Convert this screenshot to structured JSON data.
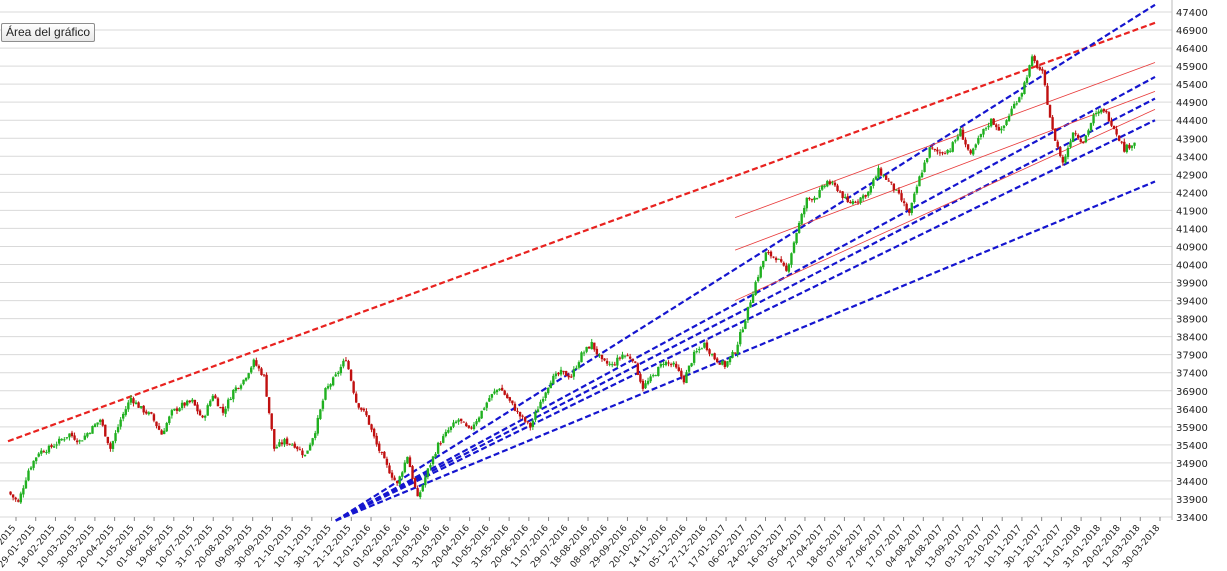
{
  "tooltip": {
    "label": "Área del gráfico"
  },
  "chart_data": {
    "type": "candlestick",
    "title": "",
    "xlabel": "",
    "ylabel": "",
    "ylim": [
      33400,
      47400
    ],
    "yticks": [
      33400,
      33900,
      34400,
      34900,
      35400,
      35900,
      36400,
      36900,
      37400,
      37900,
      38400,
      38900,
      39400,
      39900,
      40400,
      40900,
      41400,
      41900,
      42400,
      42900,
      43400,
      43900,
      44400,
      44900,
      45400,
      45900,
      46400,
      46900,
      47400
    ],
    "xticks": [
      "29-12-2015",
      "29-01-2015",
      "18-02-2015",
      "10-03-2015",
      "30-03-2015",
      "20-04-2015",
      "11-05-2015",
      "01-06-2015",
      "19-06-2015",
      "10-07-2015",
      "31-07-2015",
      "20-08-2015",
      "09-09-2015",
      "30-09-2015",
      "21-10-2015",
      "10-11-2015",
      "30-11-2015",
      "21-12-2015",
      "12-01-2016",
      "01-02-2016",
      "19-02-2016",
      "10-03-2016",
      "31-03-2016",
      "20-04-2016",
      "10-05-2016",
      "31-05-2016",
      "20-06-2016",
      "11-07-2016",
      "29-07-2016",
      "18-08-2016",
      "08-09-2016",
      "29-09-2016",
      "20-10-2016",
      "14-11-2016",
      "05-12-2016",
      "27-12-2016",
      "17-01-2017",
      "06-02-2017",
      "24-02-2017",
      "16-03-2017",
      "05-04-2017",
      "27-04-2017",
      "18-05-2017",
      "07-06-2017",
      "27-06-2017",
      "17-07-2017",
      "04-08-2017",
      "24-08-2017",
      "13-09-2017",
      "03-10-2017",
      "23-10-2017",
      "10-11-2017",
      "30-11-2017",
      "20-12-2017",
      "11-01-2018",
      "31-01-2018",
      "20-02-2018",
      "12-03-2018",
      "30-03-2018"
    ],
    "price_path": [
      [
        0,
        34100
      ],
      [
        1,
        33800
      ],
      [
        2,
        34700
      ],
      [
        3,
        35200
      ],
      [
        4,
        35300
      ],
      [
        5,
        35500
      ],
      [
        6,
        35700
      ],
      [
        7,
        35500
      ],
      [
        8,
        35800
      ],
      [
        9,
        36100
      ],
      [
        10,
        35300
      ],
      [
        11,
        36100
      ],
      [
        12,
        36700
      ],
      [
        13,
        36400
      ],
      [
        14,
        36200
      ],
      [
        15,
        35700
      ],
      [
        16,
        36300
      ],
      [
        17,
        36500
      ],
      [
        18,
        36600
      ],
      [
        19,
        36100
      ],
      [
        20,
        36800
      ],
      [
        21,
        36300
      ],
      [
        22,
        36900
      ],
      [
        23,
        37200
      ],
      [
        24,
        37700
      ],
      [
        25,
        37300
      ],
      [
        26,
        35300
      ],
      [
        27,
        35500
      ],
      [
        28,
        35400
      ],
      [
        29,
        35100
      ],
      [
        30,
        35800
      ],
      [
        31,
        36900
      ],
      [
        32,
        37300
      ],
      [
        33,
        37800
      ],
      [
        34,
        36600
      ],
      [
        35,
        36200
      ],
      [
        36,
        35400
      ],
      [
        37,
        34800
      ],
      [
        38,
        34300
      ],
      [
        39,
        35100
      ],
      [
        40,
        33900
      ],
      [
        41,
        34700
      ],
      [
        42,
        35400
      ],
      [
        43,
        35800
      ],
      [
        44,
        36100
      ],
      [
        45,
        35800
      ],
      [
        46,
        36200
      ],
      [
        47,
        36700
      ],
      [
        48,
        37000
      ],
      [
        49,
        36600
      ],
      [
        50,
        36200
      ],
      [
        51,
        35900
      ],
      [
        52,
        36600
      ],
      [
        53,
        37200
      ],
      [
        54,
        37400
      ],
      [
        55,
        37300
      ],
      [
        56,
        37900
      ],
      [
        57,
        38200
      ],
      [
        58,
        37700
      ],
      [
        59,
        37600
      ],
      [
        60,
        37900
      ],
      [
        61,
        37800
      ],
      [
        62,
        37000
      ],
      [
        63,
        37300
      ],
      [
        64,
        37700
      ],
      [
        65,
        37600
      ],
      [
        66,
        37200
      ],
      [
        67,
        37900
      ],
      [
        68,
        38200
      ],
      [
        69,
        37800
      ],
      [
        70,
        37600
      ],
      [
        71,
        38000
      ],
      [
        72,
        38900
      ],
      [
        73,
        39900
      ],
      [
        74,
        40700
      ],
      [
        75,
        40600
      ],
      [
        76,
        40200
      ],
      [
        77,
        41300
      ],
      [
        78,
        42200
      ],
      [
        79,
        42300
      ],
      [
        80,
        42700
      ],
      [
        81,
        42500
      ],
      [
        82,
        42100
      ],
      [
        83,
        42200
      ],
      [
        84,
        42400
      ],
      [
        85,
        43000
      ],
      [
        86,
        42700
      ],
      [
        87,
        42300
      ],
      [
        88,
        41800
      ],
      [
        89,
        42800
      ],
      [
        90,
        43600
      ],
      [
        91,
        43500
      ],
      [
        92,
        43600
      ],
      [
        93,
        44100
      ],
      [
        94,
        43400
      ],
      [
        95,
        44000
      ],
      [
        96,
        44400
      ],
      [
        97,
        44100
      ],
      [
        98,
        44700
      ],
      [
        99,
        45200
      ],
      [
        100,
        46100
      ],
      [
        101,
        45700
      ],
      [
        102,
        44100
      ],
      [
        103,
        43200
      ],
      [
        104,
        44100
      ],
      [
        105,
        43800
      ],
      [
        106,
        44500
      ],
      [
        107,
        44700
      ],
      [
        108,
        44200
      ],
      [
        109,
        43600
      ],
      [
        110,
        43800
      ]
    ],
    "trendlines": [
      {
        "color": "red",
        "style": "dashed",
        "from": [
          0,
          35500
        ],
        "to": [
          112,
          47100
        ]
      },
      {
        "color": "blue",
        "style": "dashed",
        "from": [
          32,
          33300
        ],
        "to": [
          112,
          47600
        ]
      },
      {
        "color": "blue",
        "style": "dashed",
        "from": [
          32,
          33300
        ],
        "to": [
          112,
          45600
        ]
      },
      {
        "color": "blue",
        "style": "dashed",
        "from": [
          32,
          33300
        ],
        "to": [
          112,
          45000
        ]
      },
      {
        "color": "blue",
        "style": "dashed",
        "from": [
          32,
          33300
        ],
        "to": [
          112,
          44400
        ]
      },
      {
        "color": "blue",
        "style": "dashed",
        "from": [
          32,
          33300
        ],
        "to": [
          112,
          42700
        ]
      },
      {
        "color": "red",
        "style": "thin",
        "from": [
          71,
          41700
        ],
        "to": [
          112,
          46000
        ]
      },
      {
        "color": "red",
        "style": "thin",
        "from": [
          71,
          40800
        ],
        "to": [
          112,
          45200
        ]
      },
      {
        "color": "red",
        "style": "thin",
        "from": [
          71,
          39400
        ],
        "to": [
          112,
          44700
        ]
      }
    ]
  }
}
